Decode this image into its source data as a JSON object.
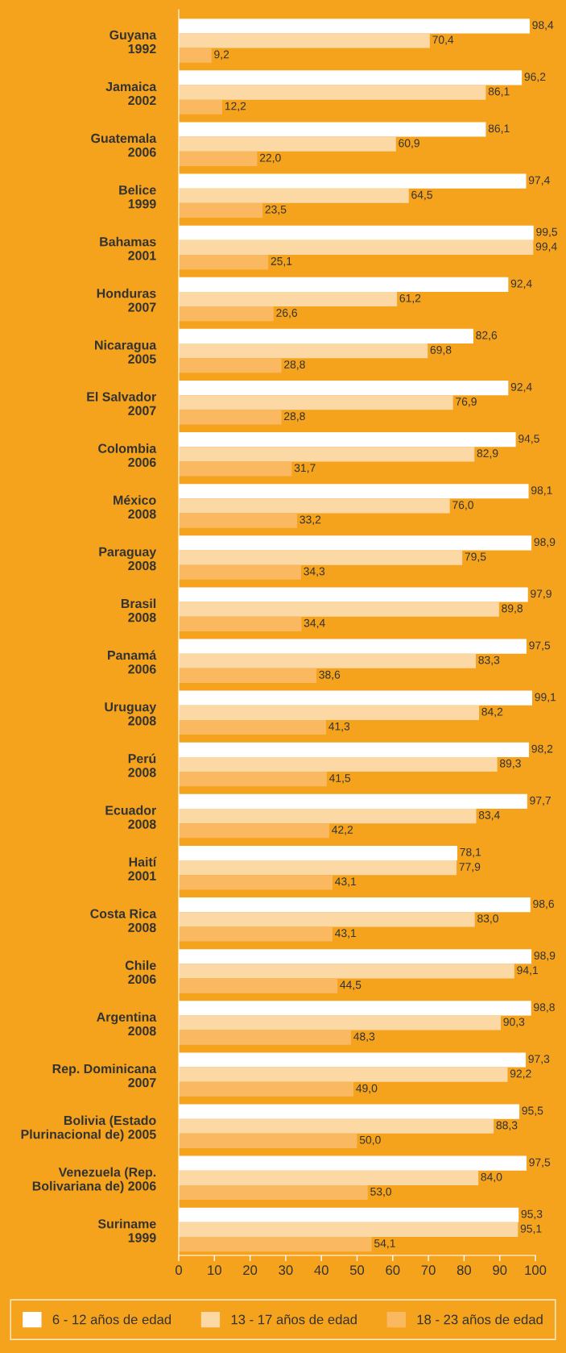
{
  "chart_data": {
    "type": "bar",
    "orientation": "horizontal",
    "categories": [
      "Guyana\n1992",
      "Jamaica\n2002",
      "Guatemala\n2006",
      "Belice\n1999",
      "Bahamas\n2001",
      "Honduras\n2007",
      "Nicaragua\n2005",
      "El Salvador\n2007",
      "Colombia\n2006",
      "México\n2008",
      "Paraguay\n2008",
      "Brasil\n2008",
      "Panamá\n2006",
      "Uruguay\n2008",
      "Perú\n2008",
      "Ecuador\n2008",
      "Haití\n2001",
      "Costa Rica\n2008",
      "Chile\n2006",
      "Argentina\n2008",
      "Rep. Dominicana\n2007",
      "Bolivia (Estado\nPlurinacional de) 2005",
      "Venezuela (Rep.\nBolivariana de) 2006",
      "Suriname\n1999"
    ],
    "series": [
      {
        "name": "6 - 12 años de edad",
        "color": "#ffffff",
        "values": [
          98.4,
          96.2,
          86.1,
          97.4,
          99.5,
          92.4,
          82.6,
          92.4,
          94.5,
          98.1,
          98.9,
          97.9,
          97.5,
          99.1,
          98.2,
          97.7,
          78.1,
          98.6,
          98.9,
          98.8,
          97.3,
          95.5,
          97.5,
          95.3
        ],
        "value_labels": [
          "98,4",
          "96,2",
          "86,1",
          "97,4",
          "99,5",
          "92,4",
          "82,6",
          "92,4",
          "94,5",
          "98,1",
          "98,9",
          "97,9",
          "97,5",
          "99,1",
          "98,2",
          "97,7",
          "78,1",
          "98,6",
          "98,9",
          "98,8",
          "97,3",
          "95,5",
          "97,5",
          "95,3"
        ]
      },
      {
        "name": "13 - 17 años de edad",
        "color": "#fcd9a4",
        "values": [
          70.4,
          86.1,
          60.9,
          64.5,
          99.4,
          61.2,
          69.8,
          76.9,
          82.9,
          76.0,
          79.5,
          89.8,
          83.3,
          84.2,
          89.3,
          83.4,
          77.9,
          83.0,
          94.1,
          90.3,
          92.2,
          88.3,
          84.0,
          95.1
        ],
        "value_labels": [
          "70,4",
          "86,1",
          "60,9",
          "64,5",
          "99,4",
          "61,2",
          "69,8",
          "76,9",
          "82,9",
          "76,0",
          "79,5",
          "89,8",
          "83,3",
          "84,2",
          "89,3",
          "83,4",
          "77,9",
          "83,0",
          "94,1",
          "90,3",
          "92,2",
          "88,3",
          "84,0",
          "95,1"
        ]
      },
      {
        "name": "18 - 23 años de edad",
        "color": "#fab860",
        "values": [
          9.2,
          12.2,
          22.0,
          23.5,
          25.1,
          26.6,
          28.8,
          28.8,
          31.7,
          33.2,
          34.3,
          34.4,
          38.6,
          41.3,
          41.5,
          42.2,
          43.1,
          43.1,
          44.5,
          48.3,
          49.0,
          50.0,
          53.0,
          54.1
        ],
        "value_labels": [
          "9,2",
          "12,2",
          "22,0",
          "23,5",
          "25,1",
          "26,6",
          "28,8",
          "28,8",
          "31,7",
          "33,2",
          "34,3",
          "34,4",
          "38,6",
          "41,3",
          "41,5",
          "42,2",
          "43,1",
          "43,1",
          "44,5",
          "48,3",
          "49,0",
          "50,0",
          "53,0",
          "54,1"
        ]
      }
    ],
    "xlim": [
      0,
      100
    ],
    "xticks": [
      0,
      10,
      20,
      30,
      40,
      50,
      60,
      70,
      80,
      90,
      100
    ],
    "legend": "bottom",
    "grid": false
  }
}
